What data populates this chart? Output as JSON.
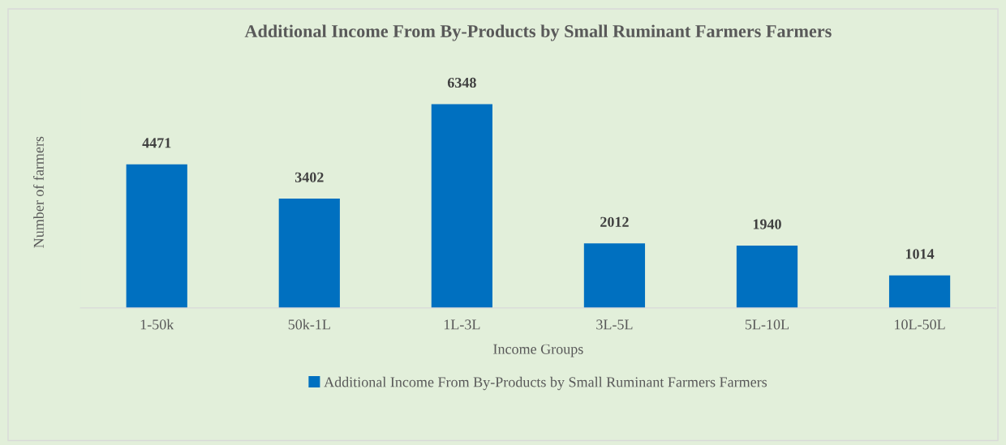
{
  "chart_data": {
    "type": "bar",
    "title": "Additional Income From By-Products by Small Ruminant Farmers Farmers",
    "xlabel": "Income Groups",
    "ylabel": "Number of farmers",
    "categories": [
      "1-50k",
      "50k-1L",
      "1L-3L",
      "3L-5L",
      "5L-10L",
      "10L-50L"
    ],
    "series": [
      {
        "name": "Additional Income From By-Products by Small Ruminant Farmers Farmers",
        "color": "#0070c0",
        "values": [
          4471,
          3402,
          6348,
          2012,
          1940,
          1014
        ]
      }
    ],
    "data_labels": true,
    "tick_labels": "x",
    "grid": false,
    "legend": "bottom"
  }
}
